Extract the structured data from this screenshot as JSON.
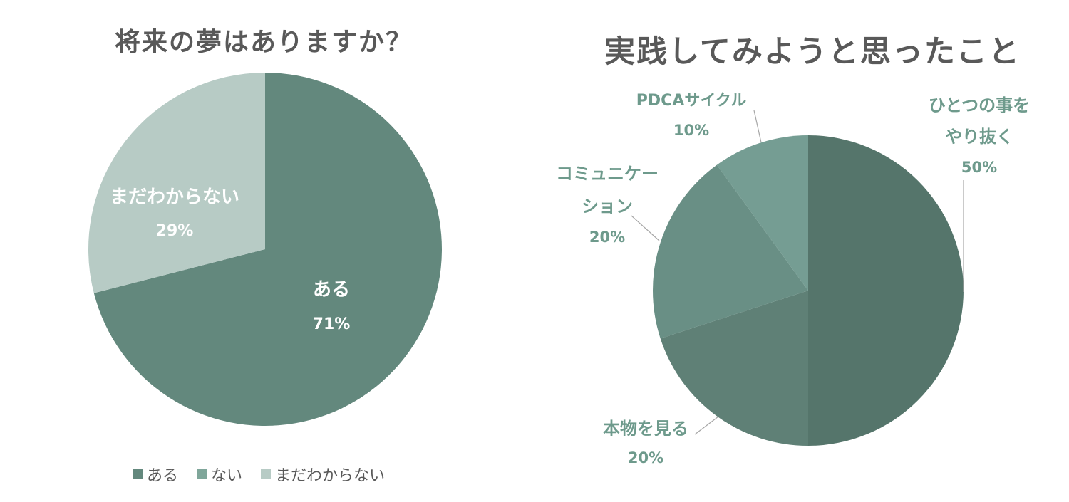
{
  "chart_data": [
    {
      "type": "pie",
      "title": "将来の夢はありますか？",
      "slices": [
        {
          "label": "ある",
          "value": 71,
          "value_label": "71%",
          "color": "#63887d"
        },
        {
          "label": "まだわからない",
          "value": 29,
          "value_label": "29%",
          "color": "#b7cbc5"
        }
      ],
      "legend": {
        "position": "bottom",
        "items": [
          {
            "label": "ある",
            "color": "#63887d"
          },
          {
            "label": "ない",
            "color": "#7fa69a"
          },
          {
            "label": "まだわからない",
            "color": "#b7cbc5"
          }
        ]
      }
    },
    {
      "type": "pie",
      "title": "実践してみようと思ったこと",
      "slices": [
        {
          "label_lines": [
            "ひとつの事を",
            "やり抜く"
          ],
          "value": 50,
          "value_label": "50%",
          "color": "#55756b"
        },
        {
          "label_lines": [
            "本物を見る"
          ],
          "value": 20,
          "value_label": "20%",
          "color": "#5f8076"
        },
        {
          "label_lines": [
            "コミュニケー",
            "ション"
          ],
          "value": 20,
          "value_label": "20%",
          "color": "#698f85"
        },
        {
          "label_lines": [
            "PDCAサイクル"
          ],
          "value": 10,
          "value_label": "10%",
          "color": "#759d93"
        }
      ],
      "label_color": "#6e9a8c"
    }
  ]
}
